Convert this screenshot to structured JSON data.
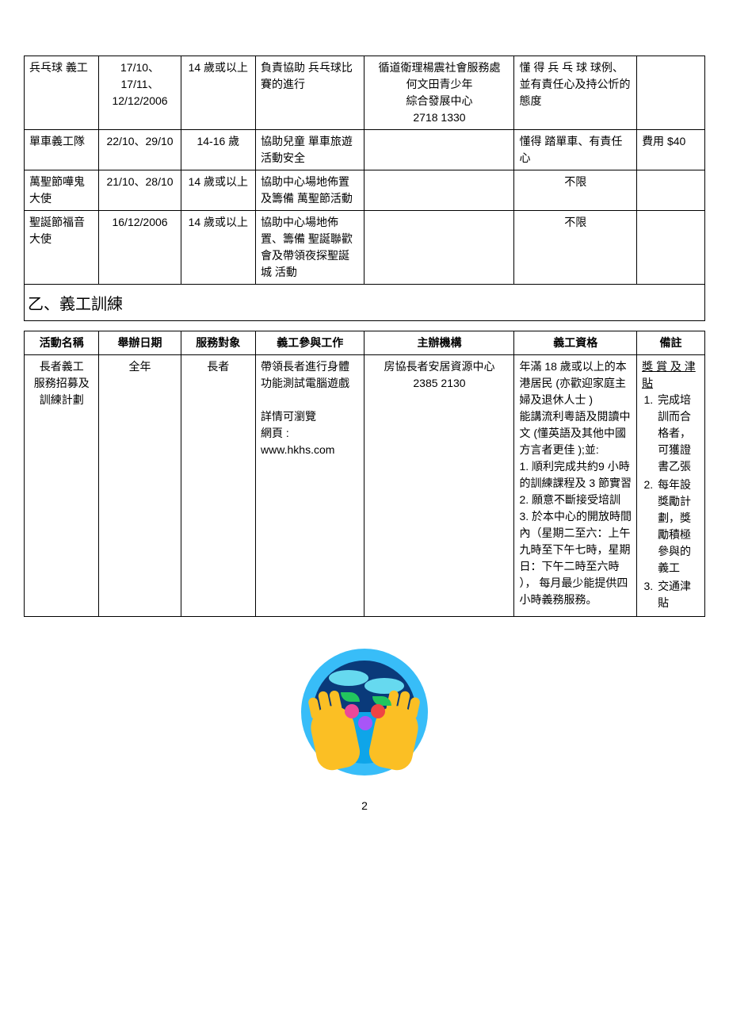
{
  "table1": {
    "rows": [
      {
        "name": "兵乓球 義工",
        "date": "17/10、17/11、12/12/2006",
        "target": "14 歲或以上",
        "work": "負責協助  兵乓球比賽的進行",
        "org": "循道衛理楊震社會服務處\n何文田青少年\n綜合發展中心\n2718 1330",
        "qual": "懂 得 兵 乓 球 球例、並有責任心及持公忻的態度",
        "note": ""
      },
      {
        "name": "單車義工隊",
        "date": "22/10、29/10",
        "target": "14-16 歲",
        "work": "協助兒童  單車旅遊 活動安全",
        "org": "",
        "qual": "懂得 踏單車、有責任心",
        "note": "費用 $40"
      },
      {
        "name": "萬聖節嘩鬼大使",
        "date": "21/10、28/10",
        "target": "14 歲或以上",
        "work": "協助中心場地佈置及籌備 萬聖節活動",
        "org": "",
        "qual": "不限",
        "note": ""
      },
      {
        "name": "聖誕節福音大使",
        "date": "16/12/2006",
        "target": "14 歲或以上",
        "work": "協助中心場地佈置、籌備 聖誕聯歡會及帶領夜探聖誕城 活動",
        "org": "",
        "qual": "不限",
        "note": ""
      }
    ]
  },
  "section_title": "乙、義工訓練",
  "table2": {
    "headers": {
      "name": "活動名稱",
      "date": "舉辦日期",
      "target": "服務對象",
      "work": "義工參與工作",
      "org": "主辦機構",
      "qual": "義工資格",
      "note": "備註"
    },
    "row": {
      "name": "長者義工\n服務招募及\n訓練計劃",
      "date": "全年",
      "target": "長者",
      "work": "帶領長者進行身體功能測試電腦遊戲\n\n詳情可瀏覽\n網頁 :\n  www.hkhs.com",
      "org": "房協長者安居資源中心\n2385 2130",
      "qual": "年滿 18 歲或以上的本港居民   (亦歡迎家庭主婦及退休人士 )\n能講流利粵語及閱讀中文   (懂英語及其他中國方言者更佳 );並:\n1. 順利完成共約9 小時的訓練課程及 3 節實習\n2. 願意不斷接受培訓\n3. 於本中心的開放時間內（星期二至六：上午九時至下午七時，星期日：下午二時至六時 ），  每月最少能提供四小時義務服務。",
      "note_title": "獎 賞 及 津貼",
      "note_items": [
        "完成培訓而合格者，可獲證書乙張",
        "每年設獎勵計劃，獎勵積極參與的義工",
        "交通津貼"
      ]
    }
  },
  "page_number": "2"
}
